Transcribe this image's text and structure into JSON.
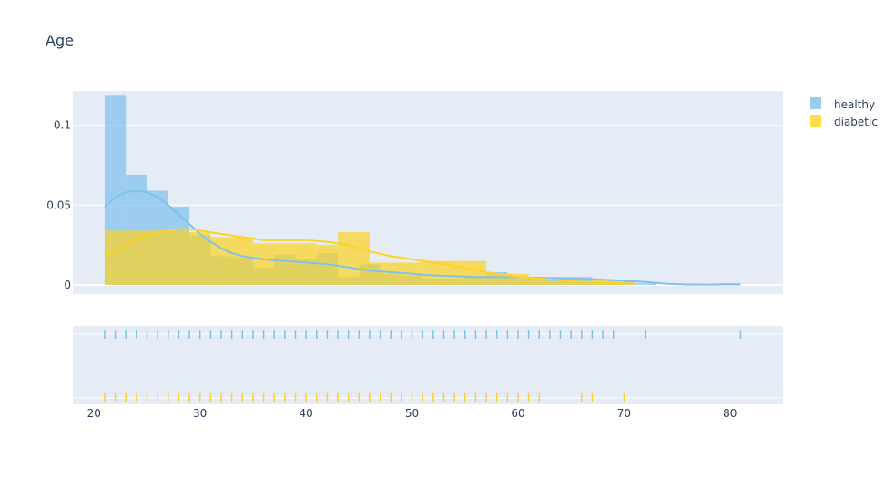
{
  "chart_data": {
    "type": "histogram",
    "title": "Age",
    "xlabel": "",
    "ylabel": "",
    "x_ticks": [
      20,
      30,
      40,
      50,
      60,
      70,
      80
    ],
    "y_ticks": [
      0,
      0.05,
      0.1
    ],
    "y_tick_labels": [
      "0",
      "0.05",
      "0.1"
    ],
    "xlim": [
      18,
      85
    ],
    "ylim": [
      0,
      0.126
    ],
    "legend_position": "top-right",
    "grid": true,
    "series": [
      {
        "name": "healthy",
        "color": "#7ec1ee",
        "bar_opacity": 0.7,
        "bins": [
          {
            "x0": 21,
            "x1": 23,
            "y": 0.119
          },
          {
            "x0": 23,
            "x1": 25,
            "y": 0.069
          },
          {
            "x0": 25,
            "x1": 27,
            "y": 0.059
          },
          {
            "x0": 27,
            "x1": 29,
            "y": 0.049
          },
          {
            "x0": 29,
            "x1": 31,
            "y": 0.031
          },
          {
            "x0": 31,
            "x1": 33,
            "y": 0.018
          },
          {
            "x0": 33,
            "x1": 35,
            "y": 0.017
          },
          {
            "x0": 35,
            "x1": 37,
            "y": 0.011
          },
          {
            "x0": 37,
            "x1": 39,
            "y": 0.019
          },
          {
            "x0": 39,
            "x1": 41,
            "y": 0.016
          },
          {
            "x0": 41,
            "x1": 43,
            "y": 0.02
          },
          {
            "x0": 43,
            "x1": 45,
            "y": 0.005
          },
          {
            "x0": 45,
            "x1": 47,
            "y": 0.013
          },
          {
            "x0": 47,
            "x1": 49,
            "y": 0.007
          },
          {
            "x0": 49,
            "x1": 51,
            "y": 0.006
          },
          {
            "x0": 51,
            "x1": 53,
            "y": 0.004
          },
          {
            "x0": 53,
            "x1": 55,
            "y": 0.004
          },
          {
            "x0": 55,
            "x1": 57,
            "y": 0.005
          },
          {
            "x0": 57,
            "x1": 59,
            "y": 0.008
          },
          {
            "x0": 59,
            "x1": 61,
            "y": 0.004
          },
          {
            "x0": 61,
            "x1": 63,
            "y": 0.004
          },
          {
            "x0": 63,
            "x1": 65,
            "y": 0.005
          },
          {
            "x0": 65,
            "x1": 67,
            "y": 0.005
          },
          {
            "x0": 67,
            "x1": 69,
            "y": 0.002
          },
          {
            "x0": 69,
            "x1": 71,
            "y": 0.002
          },
          {
            "x0": 71,
            "x1": 73,
            "y": 0.001
          },
          {
            "x0": 79,
            "x1": 81,
            "y": 0.001
          }
        ],
        "kde": [
          [
            21,
            0.049
          ],
          [
            22,
            0.055
          ],
          [
            23,
            0.058
          ],
          [
            24,
            0.059
          ],
          [
            25,
            0.058
          ],
          [
            26,
            0.055
          ],
          [
            27,
            0.05
          ],
          [
            28,
            0.044
          ],
          [
            29,
            0.038
          ],
          [
            30,
            0.032
          ],
          [
            31,
            0.027
          ],
          [
            32,
            0.023
          ],
          [
            33,
            0.02
          ],
          [
            34,
            0.018
          ],
          [
            35,
            0.017
          ],
          [
            36,
            0.016
          ],
          [
            38,
            0.015
          ],
          [
            40,
            0.014
          ],
          [
            42,
            0.013
          ],
          [
            44,
            0.011
          ],
          [
            46,
            0.009
          ],
          [
            48,
            0.008
          ],
          [
            50,
            0.007
          ],
          [
            52,
            0.006
          ],
          [
            54,
            0.0055
          ],
          [
            56,
            0.005
          ],
          [
            58,
            0.005
          ],
          [
            60,
            0.0048
          ],
          [
            62,
            0.0045
          ],
          [
            64,
            0.0042
          ],
          [
            66,
            0.0038
          ],
          [
            68,
            0.0033
          ],
          [
            70,
            0.0027
          ],
          [
            72,
            0.0018
          ],
          [
            74,
            0.0008
          ],
          [
            76,
            0.0003
          ],
          [
            78,
            0.0002
          ],
          [
            80,
            0.0004
          ],
          [
            81,
            0.0003
          ]
        ],
        "rug": [
          21,
          22,
          23,
          24,
          25,
          26,
          27,
          28,
          29,
          30,
          31,
          32,
          33,
          34,
          35,
          36,
          37,
          38,
          39,
          40,
          41,
          42,
          43,
          44,
          45,
          46,
          47,
          48,
          49,
          50,
          51,
          52,
          53,
          54,
          55,
          56,
          57,
          58,
          59,
          60,
          61,
          62,
          63,
          64,
          65,
          66,
          67,
          68,
          69,
          72,
          81
        ]
      },
      {
        "name": "diabetic",
        "color": "#fed320",
        "bar_opacity": 0.7,
        "bins": [
          {
            "x0": 21,
            "x1": 29,
            "y": 0.034
          },
          {
            "x0": 29,
            "x1": 31,
            "y": 0.033
          },
          {
            "x0": 31,
            "x1": 35,
            "y": 0.03
          },
          {
            "x0": 35,
            "x1": 41,
            "y": 0.026
          },
          {
            "x0": 41,
            "x1": 43,
            "y": 0.025
          },
          {
            "x0": 43,
            "x1": 46,
            "y": 0.033
          },
          {
            "x0": 46,
            "x1": 51,
            "y": 0.014
          },
          {
            "x0": 51,
            "x1": 53,
            "y": 0.015
          },
          {
            "x0": 53,
            "x1": 57,
            "y": 0.015
          },
          {
            "x0": 57,
            "x1": 59,
            "y": 0.007
          },
          {
            "x0": 59,
            "x1": 61,
            "y": 0.007
          },
          {
            "x0": 61,
            "x1": 63,
            "y": 0.003
          },
          {
            "x0": 63,
            "x1": 67,
            "y": 0.002
          },
          {
            "x0": 67,
            "x1": 71,
            "y": 0.003
          }
        ],
        "kde": [
          [
            21,
            0.018
          ],
          [
            22,
            0.021
          ],
          [
            23,
            0.025
          ],
          [
            24,
            0.029
          ],
          [
            25,
            0.031
          ],
          [
            26,
            0.033
          ],
          [
            27,
            0.034
          ],
          [
            28,
            0.035
          ],
          [
            29,
            0.035
          ],
          [
            30,
            0.034
          ],
          [
            31,
            0.033
          ],
          [
            32,
            0.032
          ],
          [
            33,
            0.031
          ],
          [
            34,
            0.03
          ],
          [
            35,
            0.029
          ],
          [
            36,
            0.028
          ],
          [
            38,
            0.028
          ],
          [
            40,
            0.028
          ],
          [
            42,
            0.027
          ],
          [
            44,
            0.025
          ],
          [
            46,
            0.021
          ],
          [
            48,
            0.018
          ],
          [
            50,
            0.016
          ],
          [
            52,
            0.014
          ],
          [
            54,
            0.012
          ],
          [
            56,
            0.009
          ],
          [
            58,
            0.007
          ],
          [
            60,
            0.005
          ],
          [
            62,
            0.004
          ],
          [
            64,
            0.003
          ],
          [
            66,
            0.002
          ],
          [
            68,
            0.0015
          ],
          [
            70,
            0.001
          ]
        ],
        "rug": [
          21,
          22,
          23,
          24,
          25,
          26,
          27,
          28,
          29,
          30,
          31,
          32,
          33,
          34,
          35,
          36,
          37,
          38,
          39,
          40,
          41,
          42,
          43,
          44,
          45,
          46,
          47,
          48,
          49,
          50,
          51,
          52,
          53,
          54,
          55,
          56,
          57,
          58,
          59,
          60,
          61,
          62,
          66,
          67,
          70
        ]
      }
    ]
  }
}
